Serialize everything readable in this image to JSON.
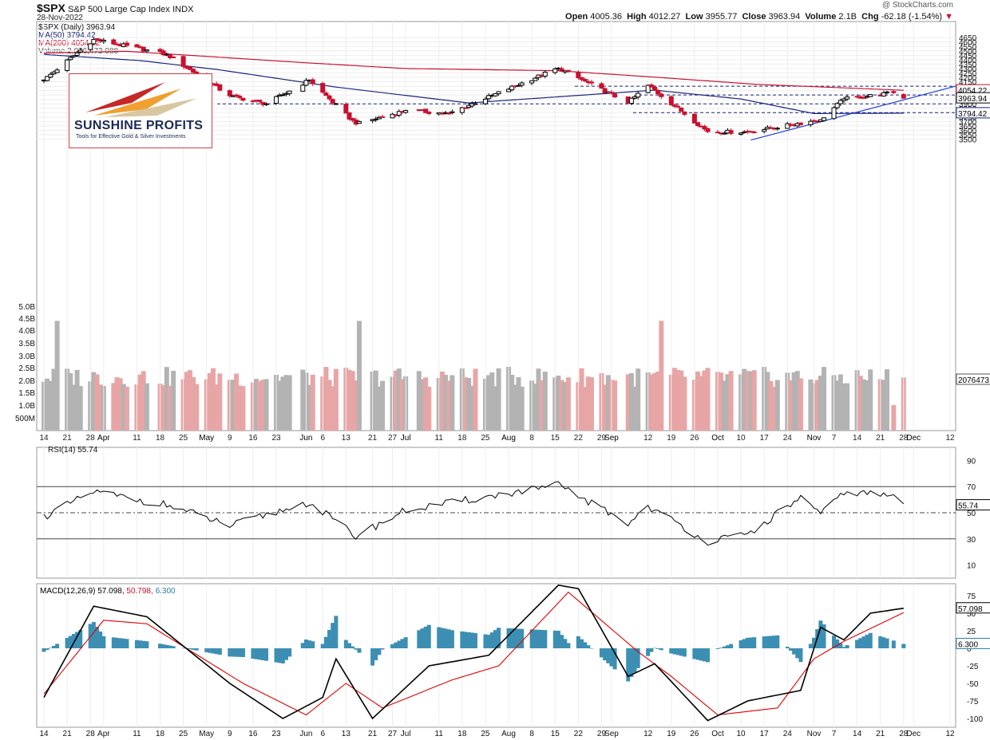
{
  "header": {
    "symbol": "$SPX",
    "name": "S&P 500 Large Cap Index",
    "exchange": "INDX",
    "date": "28-Nov-2022",
    "watermark": "@ StockCharts.com",
    "open_label": "Open",
    "open": "4005.36",
    "high_label": "High",
    "high": "4012.27",
    "low_label": "Low",
    "low": "3955.77",
    "close_label": "Close",
    "close": "3963.94",
    "volume_label": "Volume",
    "volume": "2.1B",
    "chg_label": "Chg",
    "chg": "-62.18 (-1.54%)"
  },
  "logo": {
    "name": "SUNSHINE PROFITS",
    "tagline": "Tools for Effective Gold & Silver Investments"
  },
  "colors": {
    "up": "#000000",
    "down": "#c8102e",
    "ma50": "#1a237e",
    "ma200": "#c8102e",
    "vol_up": "#b3b3b3",
    "vol_down": "#e8a5a5",
    "support": "#1a237e",
    "trend": "#1f3fe0",
    "rsi": "#000000",
    "macd": "#000000",
    "signal": "#e00000",
    "hist": "#3c8fb3"
  },
  "chart_data": [
    {
      "type": "candlestick",
      "title": "$SPX (Daily) 3963.94",
      "legend": [
        "MA(50) 3794.42",
        "MA(200) 4054.22",
        "Volume 2,076,473,088"
      ],
      "x_labels": [
        "14",
        "21",
        "28",
        "Apr",
        "11",
        "18",
        "25",
        "May",
        "9",
        "16",
        "23",
        "Jun",
        "6",
        "13",
        "21",
        "27",
        "Jul",
        "11",
        "18",
        "25",
        "Aug",
        "8",
        "15",
        "22",
        "29",
        "Sep",
        "12",
        "19",
        "26",
        "Oct",
        "10",
        "17",
        "24",
        "Nov",
        "7",
        "14",
        "21",
        "28",
        "Dec",
        "12"
      ],
      "price_ticks": [
        4650,
        4600,
        4550,
        4500,
        4450,
        4400,
        4350,
        4300,
        4250,
        4200,
        4150,
        4100,
        4050,
        4000,
        3950,
        3900,
        3850,
        3800,
        3750,
        3700,
        3650,
        3600,
        3550,
        3500
      ],
      "volume_ticks": [
        "5.0B",
        "4.5B",
        "4.0B",
        "3.5B",
        "3.0B",
        "2.5B",
        "2.0B",
        "1.5B",
        "1.0B",
        "500M"
      ],
      "ylim": [
        3480,
        4660
      ],
      "last_labels": {
        "ma200": "4054.22",
        "close": "3963.94",
        "ma50": "3794.42",
        "volume": "2076473"
      },
      "support_levels": [
        4100,
        4000,
        3900,
        3800
      ],
      "trend_line": {
        "from": [
          "Oct 13",
          3490
        ],
        "to": [
          "Dec 16",
          4100
        ]
      },
      "closes_key_points": [
        {
          "d": "Mar 14",
          "c": 4170
        },
        {
          "d": "Mar 29",
          "c": 4630
        },
        {
          "d": "Apr 20",
          "c": 4460
        },
        {
          "d": "May 9",
          "c": 3990
        },
        {
          "d": "May 20",
          "c": 3900
        },
        {
          "d": "Jun 2",
          "c": 4170
        },
        {
          "d": "Jun 16",
          "c": 3670
        },
        {
          "d": "Jul 1",
          "c": 3825
        },
        {
          "d": "Jul 14",
          "c": 3790
        },
        {
          "d": "Aug 16",
          "c": 4305
        },
        {
          "d": "Sep 6",
          "c": 3910
        },
        {
          "d": "Sep 12",
          "c": 4110
        },
        {
          "d": "Sep 30",
          "c": 3585
        },
        {
          "d": "Oct 12",
          "c": 3580
        },
        {
          "d": "Nov 3",
          "c": 3720
        },
        {
          "d": "Nov 10",
          "c": 3955
        },
        {
          "d": "Nov 25",
          "c": 4026
        },
        {
          "d": "Nov 28",
          "c": 3964
        }
      ]
    },
    {
      "type": "line",
      "title": "RSI(14) 55.74",
      "ylim": [
        0,
        100
      ],
      "ticks": [
        90,
        70,
        50,
        30,
        10
      ],
      "reference_lines": [
        70,
        50,
        30
      ],
      "last_label": "55.74",
      "key_points": [
        {
          "d": "Mar 14",
          "v": 47
        },
        {
          "d": "Mar 29",
          "v": 66
        },
        {
          "d": "Apr 20",
          "v": 56
        },
        {
          "d": "May 9",
          "v": 40
        },
        {
          "d": "Jun 2",
          "v": 58
        },
        {
          "d": "Jun 16",
          "v": 32
        },
        {
          "d": "Jul 1",
          "v": 52
        },
        {
          "d": "Aug 16",
          "v": 71
        },
        {
          "d": "Sep 6",
          "v": 42
        },
        {
          "d": "Sep 12",
          "v": 55
        },
        {
          "d": "Sep 30",
          "v": 28
        },
        {
          "d": "Oct 12",
          "v": 33
        },
        {
          "d": "Oct 28",
          "v": 62
        },
        {
          "d": "Nov 3",
          "v": 48
        },
        {
          "d": "Nov 10",
          "v": 66
        },
        {
          "d": "Nov 25",
          "v": 63
        },
        {
          "d": "Nov 28",
          "v": 55.74
        }
      ]
    },
    {
      "type": "line",
      "title": "MACD(12,26,9)",
      "series_labels": [
        "57.098",
        "50.798",
        "6.300"
      ],
      "ylim": [
        -110,
        110
      ],
      "ticks": [
        75,
        50,
        25,
        0,
        -25,
        -50,
        -75,
        -100
      ],
      "last_labels": {
        "macd": "57.098",
        "signal": "50.798",
        "hist": "6.300"
      },
      "key_points_macd": [
        {
          "d": "Mar 14",
          "v": -70
        },
        {
          "d": "Mar 29",
          "v": 60
        },
        {
          "d": "Apr 14",
          "v": 45
        },
        {
          "d": "May 9",
          "v": -50
        },
        {
          "d": "May 25",
          "v": -100
        },
        {
          "d": "Jun 6",
          "v": -70
        },
        {
          "d": "Jun 10",
          "v": -15
        },
        {
          "d": "Jun 21",
          "v": -100
        },
        {
          "d": "Jul 8",
          "v": -25
        },
        {
          "d": "Jul 26",
          "v": -10
        },
        {
          "d": "Aug 16",
          "v": 90
        },
        {
          "d": "Aug 22",
          "v": 85
        },
        {
          "d": "Sep 6",
          "v": -40
        },
        {
          "d": "Sep 14",
          "v": -22
        },
        {
          "d": "Sep 30",
          "v": -103
        },
        {
          "d": "Oct 12",
          "v": -75
        },
        {
          "d": "Oct 28",
          "v": -60
        },
        {
          "d": "Nov 3",
          "v": 30
        },
        {
          "d": "Nov 10",
          "v": 12
        },
        {
          "d": "Nov 18",
          "v": 50
        },
        {
          "d": "Nov 28",
          "v": 57.098
        }
      ],
      "key_points_signal": [
        {
          "d": "Mar 14",
          "v": -65
        },
        {
          "d": "Apr 1",
          "v": 40
        },
        {
          "d": "Apr 14",
          "v": 35
        },
        {
          "d": "May 13",
          "v": -50
        },
        {
          "d": "Jun 1",
          "v": -95
        },
        {
          "d": "Jun 13",
          "v": -50
        },
        {
          "d": "Jun 24",
          "v": -85
        },
        {
          "d": "Jul 15",
          "v": -45
        },
        {
          "d": "Jul 29",
          "v": -25
        },
        {
          "d": "Aug 19",
          "v": 80
        },
        {
          "d": "Sep 9",
          "v": -5
        },
        {
          "d": "Sep 19",
          "v": -40
        },
        {
          "d": "Oct 3",
          "v": -95
        },
        {
          "d": "Oct 21",
          "v": -85
        },
        {
          "d": "Nov 1",
          "v": -15
        },
        {
          "d": "Nov 10",
          "v": 10
        },
        {
          "d": "Nov 28",
          "v": 50.798
        }
      ]
    }
  ]
}
